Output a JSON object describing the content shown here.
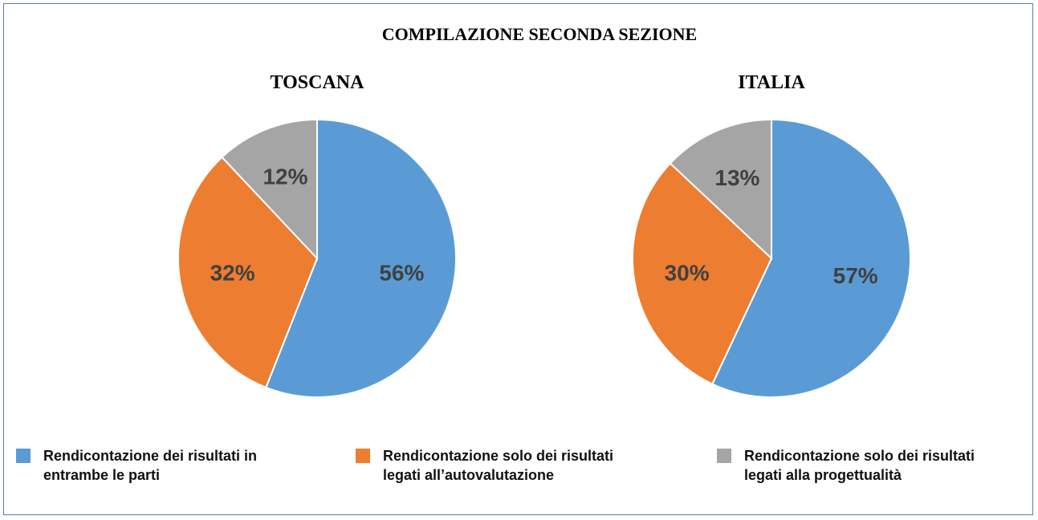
{
  "title": "COMPILAZIONE SECONDA SEZIONE",
  "chart_data": [
    {
      "type": "pie",
      "title": "TOSCANA",
      "categories": [
        "Rendicontazione dei risultati in entrambe le parti",
        "Rendicontazione solo dei risultati legati all’autovalutazione",
        "Rendicontazione solo dei risultati legati alla progettualità"
      ],
      "values": [
        56,
        32,
        12
      ],
      "value_labels": [
        "56%",
        "32%",
        "12%"
      ],
      "colors": [
        "#5b9bd5",
        "#ed7d31",
        "#a5a5a5"
      ]
    },
    {
      "type": "pie",
      "title": "ITALIA",
      "categories": [
        "Rendicontazione dei risultati in entrambe le parti",
        "Rendicontazione solo dei risultati legati all’autovalutazione",
        "Rendicontazione solo dei risultati legati alla progettualità"
      ],
      "values": [
        57,
        30,
        13
      ],
      "value_labels": [
        "57%",
        "30%",
        "13%"
      ],
      "colors": [
        "#5b9bd5",
        "#ed7d31",
        "#a5a5a5"
      ]
    }
  ]
}
